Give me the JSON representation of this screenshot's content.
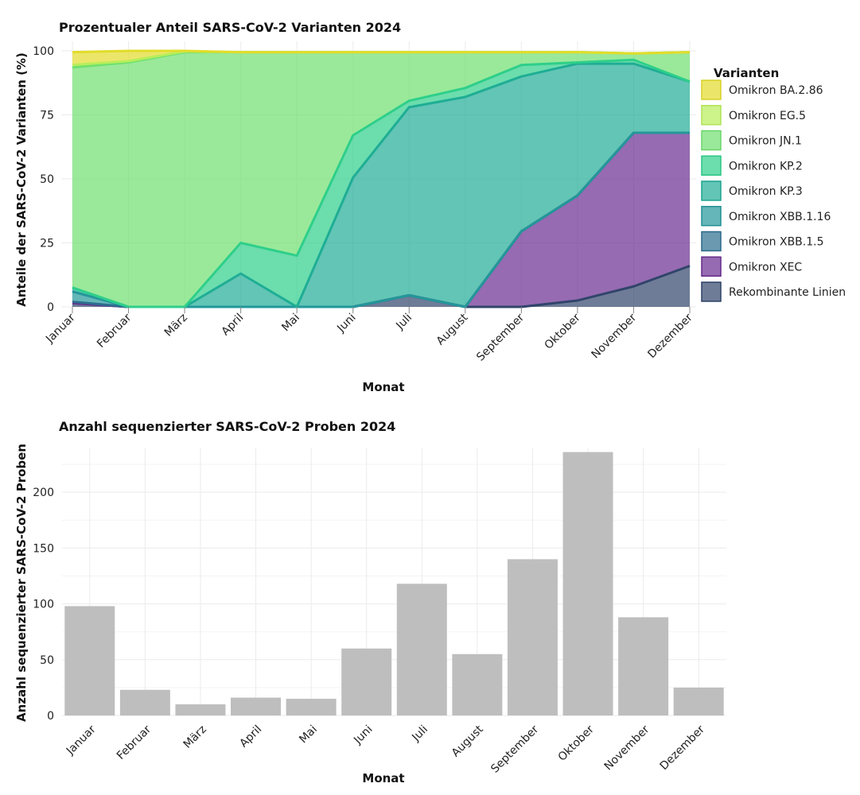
{
  "chart_data": [
    {
      "type": "area",
      "stacked": true,
      "title": "Prozentualer Anteil SARS-CoV-2 Varianten 2024",
      "xlabel": "Monat",
      "ylabel": "Anteile der SARS-CoV-2 Varianten (%)",
      "ylim": [
        0,
        100
      ],
      "yticks": [
        0,
        25,
        50,
        75,
        100
      ],
      "categories": [
        "Januar",
        "Februar",
        "März",
        "April",
        "Mai",
        "Juni",
        "Juli",
        "August",
        "September",
        "Oktober",
        "November",
        "Dezember"
      ],
      "legend_title": "Varianten",
      "legend_position": "right",
      "series": [
        {
          "name": "Rekombinante Linien",
          "color": "#31446b",
          "values": [
            1.5,
            0,
            0,
            0,
            0,
            0,
            4.5,
            0,
            0,
            2.5,
            8,
            16
          ]
        },
        {
          "name": "Omikron XEC",
          "color": "#6a2c91",
          "values": [
            0,
            0,
            0,
            0,
            0,
            0,
            0,
            0,
            29.5,
            41,
            60,
            52
          ]
        },
        {
          "name": "Omikron XBB.1.5",
          "color": "#2c6e8f",
          "values": [
            0.5,
            0,
            0,
            0,
            0,
            0,
            0,
            0,
            0,
            0,
            0,
            0
          ]
        },
        {
          "name": "Omikron XBB.1.16",
          "color": "#23979a",
          "values": [
            4,
            0,
            0,
            0,
            0,
            0,
            0,
            0,
            0,
            0,
            0,
            0
          ]
        },
        {
          "name": "Omikron KP.3",
          "color": "#1fad95",
          "values": [
            1.5,
            0,
            0,
            13,
            0,
            50.5,
            73.5,
            82,
            60.5,
            51.5,
            27,
            20
          ]
        },
        {
          "name": "Omikron KP.2",
          "color": "#2ecf8a",
          "values": [
            0,
            0,
            0,
            12,
            20,
            16.5,
            2.5,
            3.5,
            4.5,
            0.5,
            1.5,
            0
          ]
        },
        {
          "name": "Omikron JN.1",
          "color": "#6fe06f",
          "values": [
            86,
            95.5,
            99.5,
            74.5,
            79.5,
            32.5,
            19,
            14,
            5,
            4,
            2.5,
            11.5
          ]
        },
        {
          "name": "Omikron EG.5",
          "color": "#b8ee5a",
          "values": [
            1,
            0.5,
            0.3,
            0,
            0,
            0,
            0,
            0,
            0,
            0,
            0,
            0
          ]
        },
        {
          "name": "Omikron BA.2.86",
          "color": "#e2dc2a",
          "values": [
            5,
            4,
            0.2,
            0,
            0,
            0,
            0,
            0,
            0,
            0,
            0,
            0
          ]
        }
      ]
    },
    {
      "type": "bar",
      "title": "Anzahl sequenzierter SARS-CoV-2 Proben 2024",
      "xlabel": "Monat",
      "ylabel": "Anzahl sequenzierter SARS-CoV-2 Proben",
      "ylim": [
        0,
        240
      ],
      "yticks": [
        0,
        50,
        100,
        150,
        200
      ],
      "bar_color": "#bebebe",
      "categories": [
        "Januar",
        "Februar",
        "März",
        "April",
        "Mai",
        "Juni",
        "Juli",
        "August",
        "September",
        "Oktober",
        "November",
        "Dezember"
      ],
      "values": [
        98,
        23,
        10,
        16,
        15,
        60,
        118,
        55,
        140,
        236,
        88,
        25
      ]
    }
  ]
}
